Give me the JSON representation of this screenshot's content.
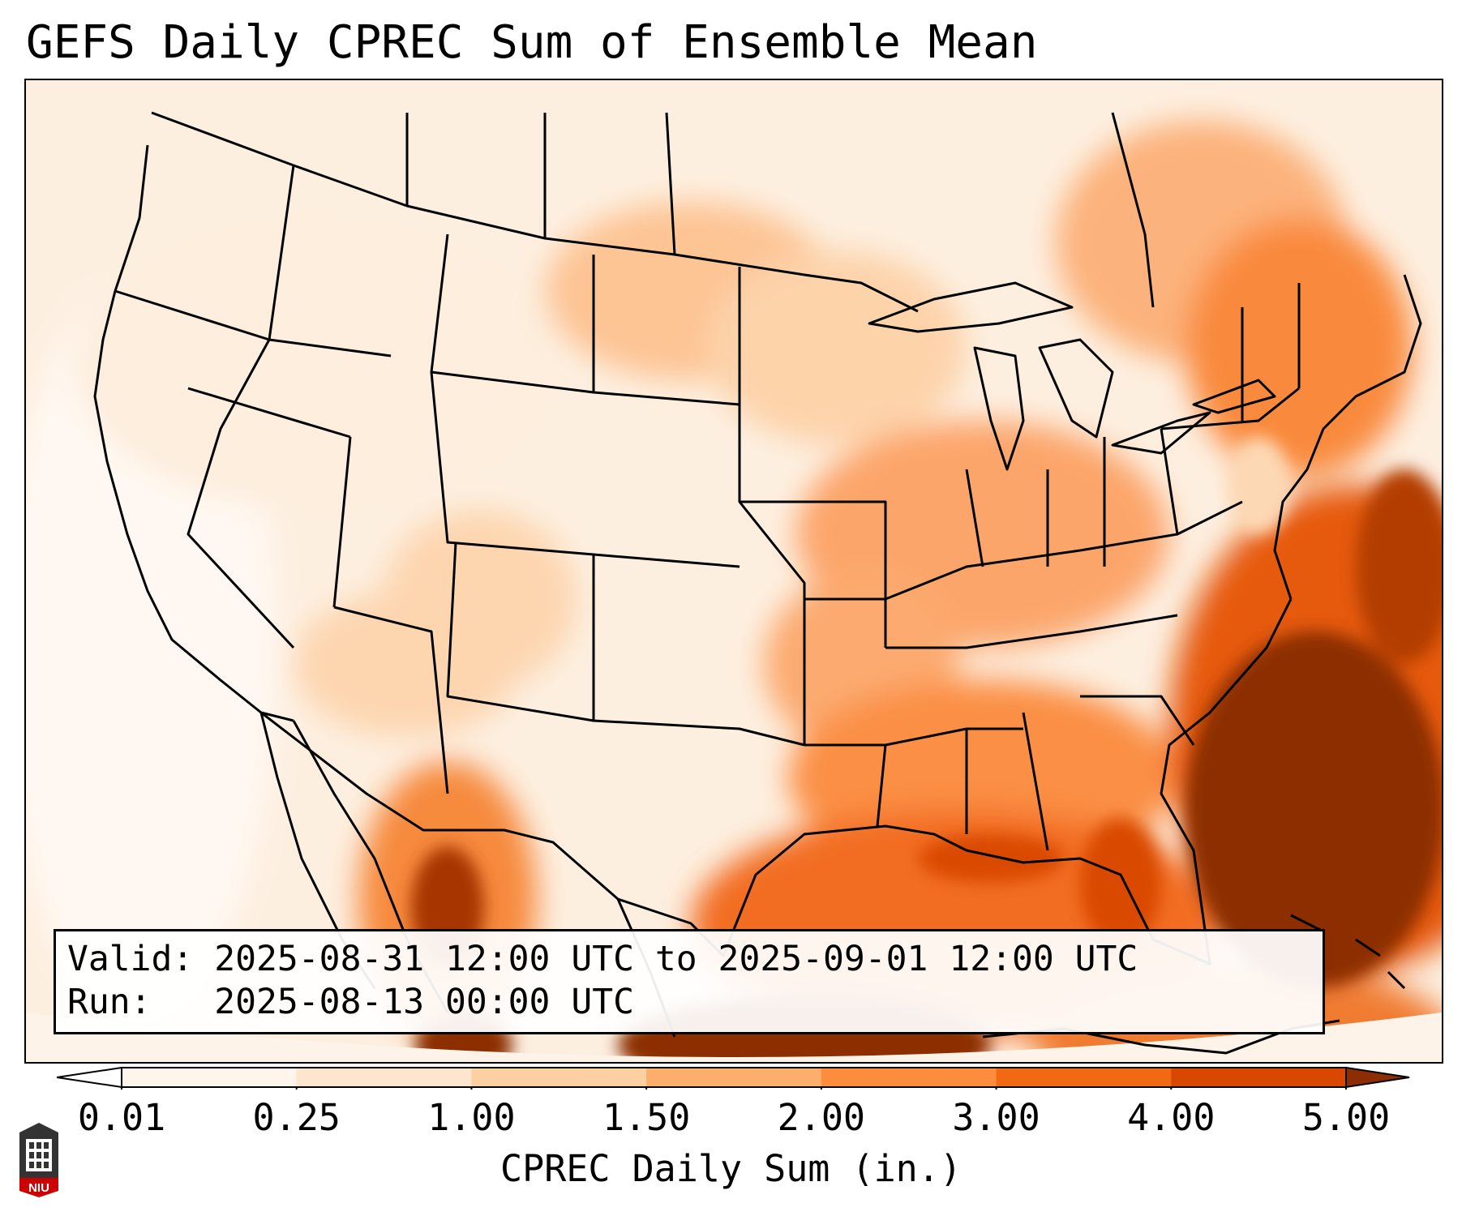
{
  "title": "GEFS Daily CPREC Sum of Ensemble Mean",
  "info": {
    "valid_label": "Valid:",
    "valid_value": "2025-08-31 12:00 UTC to 2025-09-01 12:00 UTC",
    "run_label": "Run:",
    "run_value": "2025-08-13 00:00 UTC"
  },
  "colorbar": {
    "label": "CPREC Daily Sum (in.)",
    "ticks": [
      "0.01",
      "0.25",
      "1.00",
      "1.50",
      "2.00",
      "3.00",
      "4.00",
      "5.00"
    ],
    "colors": [
      "#fff5eb",
      "#fee6ce",
      "#fdd0a2",
      "#fdae6b",
      "#fd8d3c",
      "#f16913",
      "#d94801",
      "#8c2d04"
    ],
    "under_color": "#ffffff",
    "over_color": "#8c2d04",
    "extend": "both"
  },
  "logo": {
    "text": "NIU",
    "colors": {
      "shield": "#cc0000",
      "tower": "#333333"
    }
  },
  "map": {
    "region": "Contiguous United States",
    "projection": "Lambert Conformal",
    "features": [
      "state boundaries",
      "coastlines",
      "country borders"
    ],
    "notable_maxima": [
      "Atlantic off Southeast US coast",
      "Gulf of Mexico",
      "Sierra Madre Occidental"
    ]
  }
}
